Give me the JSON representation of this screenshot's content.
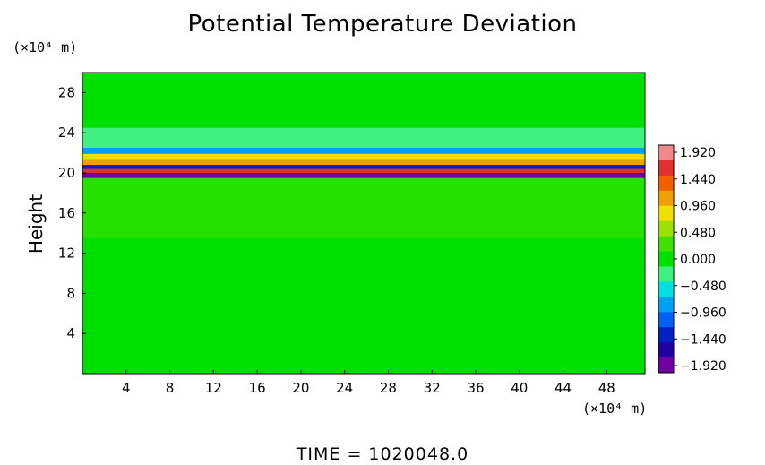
{
  "chart_data": {
    "type": "heatmap",
    "title": "Potential Temperature Deviation",
    "ylabel": "Height",
    "xlabel": "",
    "x_unit": "(×10⁴ m)",
    "y_unit": "(×10⁴ m)",
    "footer": "TIME = 1020048.0",
    "xlim": [
      0,
      51.5
    ],
    "ylim": [
      0,
      30
    ],
    "x_ticks": [
      4,
      8,
      12,
      16,
      20,
      24,
      28,
      32,
      36,
      40,
      44,
      48
    ],
    "y_ticks": [
      4,
      8,
      12,
      16,
      20,
      24,
      28
    ],
    "colorbar": {
      "ticks": [
        "1.920",
        "1.440",
        "0.960",
        "0.480",
        "0.000",
        "−0.480",
        "−0.960",
        "−1.440",
        "−1.920"
      ],
      "range": [
        -1.92,
        1.92
      ],
      "colors": [
        "#f08a8a",
        "#e03030",
        "#f06000",
        "#f0a000",
        "#f0e000",
        "#a0e000",
        "#40e000",
        "#00e000",
        "#40f080",
        "#00e0e0",
        "#00a0f0",
        "#0060f0",
        "#0020c0",
        "#2000a0",
        "#7000a0"
      ]
    },
    "field_bands": [
      {
        "y0": 0,
        "y1": 19.5,
        "value": 0.0
      },
      {
        "y0": 13.5,
        "y1": 19.5,
        "value": 0.15
      },
      {
        "y0": 19.5,
        "y1": 20.0,
        "value": -1.9
      },
      {
        "y0": 20.0,
        "y1": 20.4,
        "value": 1.6
      },
      {
        "y0": 20.4,
        "y1": 20.8,
        "value": -1.5
      },
      {
        "y0": 20.8,
        "y1": 21.3,
        "value": 1.2
      },
      {
        "y0": 21.3,
        "y1": 21.9,
        "value": 0.8
      },
      {
        "y0": 21.9,
        "y1": 22.5,
        "value": -0.7
      },
      {
        "y0": 22.5,
        "y1": 24.5,
        "value": -0.25
      },
      {
        "y0": 24.5,
        "y1": 30,
        "value": 0.0
      }
    ]
  }
}
